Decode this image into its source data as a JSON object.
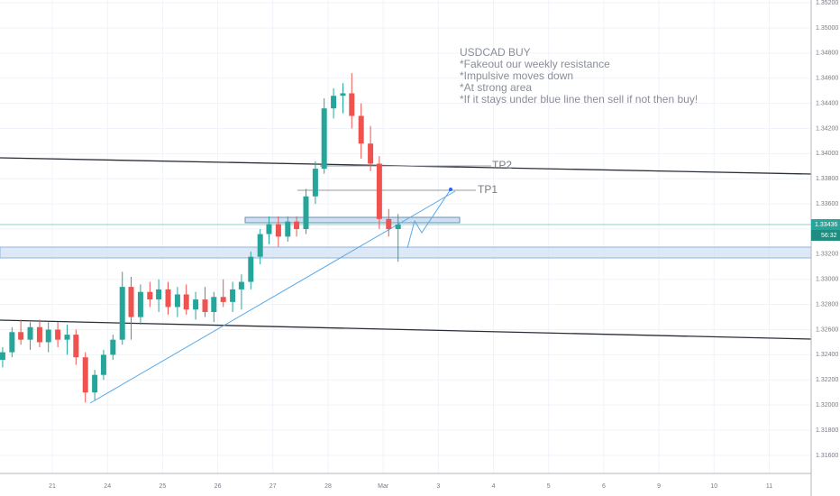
{
  "chart_data": {
    "type": "candlestick",
    "up_color": "#26a69a",
    "down_color": "#ef5350",
    "x": [
      -0.9,
      -0.73,
      -0.57,
      -0.4,
      -0.23,
      -0.07,
      0.1,
      0.27,
      0.43,
      0.6,
      0.77,
      0.93,
      1.1,
      1.27,
      1.43,
      1.6,
      1.77,
      1.93,
      2.1,
      2.27,
      2.43,
      2.6,
      2.77,
      2.93,
      3.1,
      3.27,
      3.43,
      3.6,
      3.77,
      3.93,
      4.1,
      4.27,
      4.43,
      4.6,
      4.77,
      4.93,
      5.1,
      5.27,
      5.43,
      5.6,
      5.77,
      5.93,
      6.1,
      6.27
    ],
    "open": [
      1.3236,
      1.3242,
      1.3258,
      1.3252,
      1.3262,
      1.325,
      1.326,
      1.3252,
      1.3256,
      1.3238,
      1.321,
      1.3224,
      1.324,
      1.3252,
      1.3294,
      1.327,
      1.329,
      1.3284,
      1.3292,
      1.3278,
      1.3288,
      1.3276,
      1.3284,
      1.3274,
      1.3286,
      1.3282,
      1.3292,
      1.3298,
      1.3318,
      1.3336,
      1.3344,
      1.3334,
      1.3346,
      1.334,
      1.3366,
      1.3388,
      1.3436,
      1.3446,
      1.3448,
      1.343,
      1.3408,
      1.3392,
      1.3348,
      1.334
    ],
    "high": [
      1.3246,
      1.3262,
      1.3268,
      1.3266,
      1.3268,
      1.3266,
      1.3266,
      1.3264,
      1.326,
      1.3242,
      1.3228,
      1.3244,
      1.3256,
      1.3306,
      1.3302,
      1.3296,
      1.3298,
      1.33,
      1.3298,
      1.3294,
      1.3296,
      1.329,
      1.3294,
      1.329,
      1.33,
      1.3298,
      1.3304,
      1.3322,
      1.334,
      1.335,
      1.335,
      1.335,
      1.335,
      1.3372,
      1.3394,
      1.3444,
      1.3452,
      1.3456,
      1.3464,
      1.344,
      1.3422,
      1.3398,
      1.3356,
      1.3352
    ],
    "low": [
      1.323,
      1.3238,
      1.3248,
      1.3244,
      1.3246,
      1.3242,
      1.3246,
      1.324,
      1.3232,
      1.3202,
      1.3204,
      1.322,
      1.3236,
      1.3248,
      1.3252,
      1.3264,
      1.3278,
      1.3274,
      1.3272,
      1.327,
      1.3272,
      1.3268,
      1.327,
      1.3266,
      1.3278,
      1.3274,
      1.3276,
      1.3292,
      1.3312,
      1.3328,
      1.3326,
      1.333,
      1.3334,
      1.3336,
      1.336,
      1.3384,
      1.3428,
      1.3432,
      1.342,
      1.3396,
      1.3386,
      1.334,
      1.3334,
      1.3314
    ],
    "close": [
      1.3242,
      1.3258,
      1.3252,
      1.3262,
      1.325,
      1.326,
      1.3252,
      1.3256,
      1.3238,
      1.321,
      1.3224,
      1.324,
      1.3252,
      1.3294,
      1.327,
      1.329,
      1.3284,
      1.3292,
      1.3278,
      1.3288,
      1.3276,
      1.3284,
      1.3274,
      1.3286,
      1.3282,
      1.3292,
      1.3298,
      1.3318,
      1.3336,
      1.3344,
      1.3334,
      1.3346,
      1.334,
      1.3366,
      1.3388,
      1.3436,
      1.3446,
      1.3448,
      1.343,
      1.3408,
      1.3392,
      1.3348,
      1.334,
      1.33436
    ],
    "xlim": [
      -0.948,
      13.76
    ],
    "xticks": [
      {
        "value": 0,
        "label": "21"
      },
      {
        "value": 1,
        "label": "24"
      },
      {
        "value": 2,
        "label": "25"
      },
      {
        "value": 3,
        "label": "26"
      },
      {
        "value": 4,
        "label": "27"
      },
      {
        "value": 5,
        "label": "28"
      },
      {
        "value": 6,
        "label": "Mar"
      },
      {
        "value": 7,
        "label": "3"
      },
      {
        "value": 8,
        "label": "4"
      },
      {
        "value": 9,
        "label": "5"
      },
      {
        "value": 10,
        "label": "6"
      },
      {
        "value": 11,
        "label": "9"
      },
      {
        "value": 12,
        "label": "10"
      },
      {
        "value": 13,
        "label": "11"
      }
    ],
    "ylim": [
      1.31456,
      1.35222
    ],
    "yticks": [
      {
        "value": 1.316,
        "label": "1.31600"
      },
      {
        "value": 1.318,
        "label": "1.31800"
      },
      {
        "value": 1.32,
        "label": "1.32000"
      },
      {
        "value": 1.322,
        "label": "1.32200"
      },
      {
        "value": 1.324,
        "label": "1.32400"
      },
      {
        "value": 1.326,
        "label": "1.32600"
      },
      {
        "value": 1.328,
        "label": "1.32800"
      },
      {
        "value": 1.33,
        "label": "1.33000"
      },
      {
        "value": 1.332,
        "label": "1.33200"
      },
      {
        "value": 1.334,
        "label": "1.33400"
      },
      {
        "value": 1.336,
        "label": "1.33600"
      },
      {
        "value": 1.338,
        "label": "1.33800"
      },
      {
        "value": 1.34,
        "label": "1.34000"
      },
      {
        "value": 1.342,
        "label": "1.34200"
      },
      {
        "value": 1.344,
        "label": "1.34400"
      },
      {
        "value": 1.346,
        "label": "1.34600"
      },
      {
        "value": 1.348,
        "label": "1.34800"
      },
      {
        "value": 1.35,
        "label": "1.35000"
      },
      {
        "value": 1.352,
        "label": "1.35200"
      }
    ],
    "grid": true,
    "current_price": {
      "value": 1.33436,
      "label": "1.33436"
    },
    "countdown": "56:32",
    "annotation": [
      "USDCAD BUY",
      "*Fakeout our weekly resistance",
      "*Impulsive moves down",
      "*At strong area",
      "*If it stays under blue line then sell if not then buy!"
    ],
    "tp1": "TP1",
    "tp2": "TP2"
  }
}
